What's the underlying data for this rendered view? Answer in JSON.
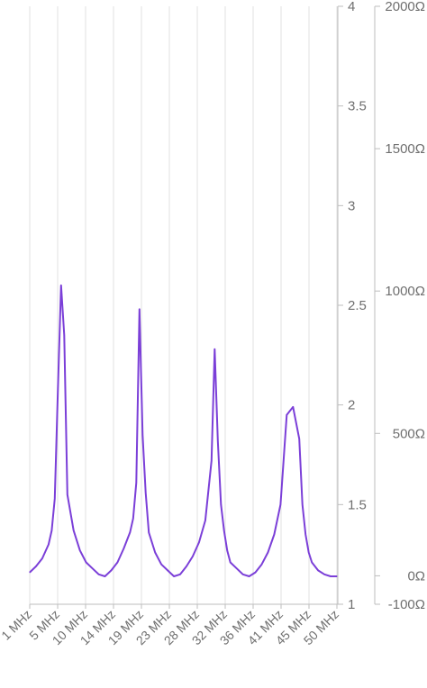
{
  "chart_data": {
    "type": "line",
    "title": "",
    "xlabel": "",
    "ylabel": "",
    "x_ticks": [
      "1 MHz",
      "5 MHz",
      "10 MHz",
      "14 MHz",
      "19 MHz",
      "23 MHz",
      "28 MHz",
      "32 MHz",
      "36 MHz",
      "41 MHz",
      "45 MHz",
      "50 MHz"
    ],
    "y_primary": {
      "ticks": [
        "1",
        "1.5",
        "2",
        "2.5",
        "3",
        "3.5",
        "4"
      ],
      "range": [
        1,
        4
      ]
    },
    "y_secondary": {
      "ticks": [
        "-100Ω",
        "0Ω",
        "500Ω",
        "1000Ω",
        "1500Ω",
        "2000Ω"
      ],
      "range": [
        -100,
        2000
      ]
    },
    "grid": "vertical",
    "series": [
      {
        "color": "#7b3fd8",
        "x": [
          1,
          2,
          3,
          4,
          4.5,
          5,
          5.5,
          6,
          6.5,
          7,
          8,
          9,
          10,
          11,
          12,
          13,
          14,
          15,
          16,
          17,
          17.5,
          18,
          18.5,
          19,
          19.5,
          20,
          21,
          22,
          23,
          24,
          25,
          26,
          27,
          28,
          29,
          30,
          30.5,
          31,
          31.5,
          32,
          32.5,
          33,
          34,
          35,
          36,
          37,
          38,
          39,
          40,
          41,
          42,
          43,
          44,
          44.5,
          45,
          45.5,
          46,
          47,
          48,
          49,
          50
        ],
        "values": [
          1.16,
          1.19,
          1.23,
          1.3,
          1.37,
          1.53,
          2.08,
          2.6,
          2.35,
          1.55,
          1.37,
          1.27,
          1.21,
          1.18,
          1.15,
          1.14,
          1.17,
          1.21,
          1.28,
          1.36,
          1.43,
          1.61,
          2.48,
          1.85,
          1.56,
          1.36,
          1.26,
          1.2,
          1.17,
          1.14,
          1.15,
          1.19,
          1.24,
          1.31,
          1.42,
          1.72,
          2.28,
          1.82,
          1.5,
          1.37,
          1.27,
          1.21,
          1.18,
          1.15,
          1.14,
          1.16,
          1.2,
          1.26,
          1.35,
          1.5,
          1.95,
          1.99,
          1.83,
          1.5,
          1.35,
          1.26,
          1.21,
          1.17,
          1.15,
          1.14,
          1.14
        ]
      }
    ]
  }
}
